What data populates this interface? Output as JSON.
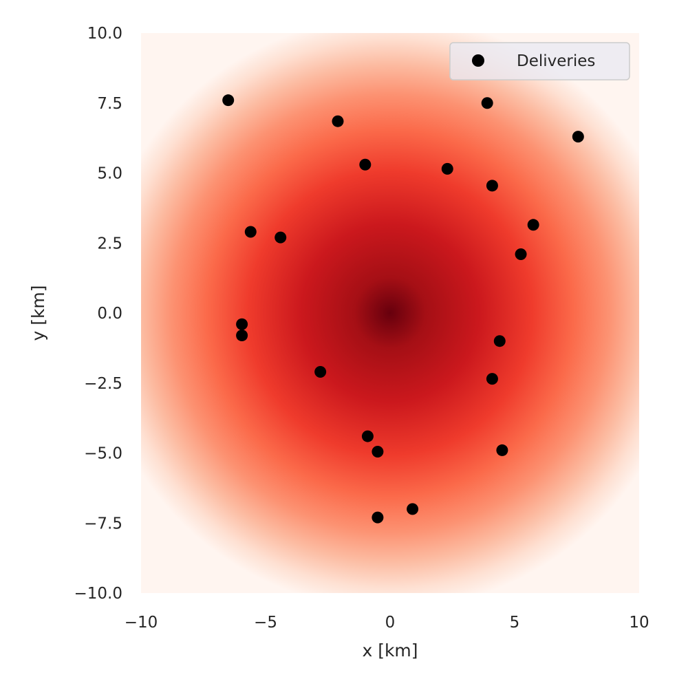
{
  "chart_data": {
    "type": "scatter",
    "title": "",
    "xlabel": "x [km]",
    "ylabel": "y [km]",
    "xlim": [
      -10,
      10
    ],
    "ylim": [
      -10,
      10
    ],
    "x_ticks": [
      "−10",
      "−5",
      "0",
      "5",
      "10"
    ],
    "y_ticks": [
      "−10.0",
      "−7.5",
      "−5.0",
      "−2.5",
      "0.0",
      "2.5",
      "5.0",
      "7.5",
      "10.0"
    ],
    "grid": false,
    "legend_position": "top-right",
    "background": {
      "type": "heatmap",
      "colormap": "Reds",
      "center": [
        0,
        0
      ],
      "description_colors": [
        "#fff5f0",
        "#fcbba1",
        "#fb6a4a",
        "#cb181d",
        "#67000d"
      ]
    },
    "series": [
      {
        "name": "Deliveries",
        "color": "#000000",
        "points": [
          [
            -6.5,
            7.6
          ],
          [
            -2.1,
            6.85
          ],
          [
            3.9,
            7.5
          ],
          [
            7.55,
            6.3
          ],
          [
            -1.0,
            5.3
          ],
          [
            2.3,
            5.15
          ],
          [
            4.1,
            4.55
          ],
          [
            -5.6,
            2.9
          ],
          [
            -4.4,
            2.7
          ],
          [
            5.75,
            3.15
          ],
          [
            5.25,
            2.1
          ],
          [
            -5.95,
            -0.4
          ],
          [
            -5.95,
            -0.8
          ],
          [
            4.4,
            -1.0
          ],
          [
            -2.8,
            -2.1
          ],
          [
            4.1,
            -2.35
          ],
          [
            -0.9,
            -4.4
          ],
          [
            -0.5,
            -4.95
          ],
          [
            4.5,
            -4.9
          ],
          [
            0.9,
            -7.0
          ],
          [
            -0.5,
            -7.3
          ]
        ]
      }
    ]
  }
}
